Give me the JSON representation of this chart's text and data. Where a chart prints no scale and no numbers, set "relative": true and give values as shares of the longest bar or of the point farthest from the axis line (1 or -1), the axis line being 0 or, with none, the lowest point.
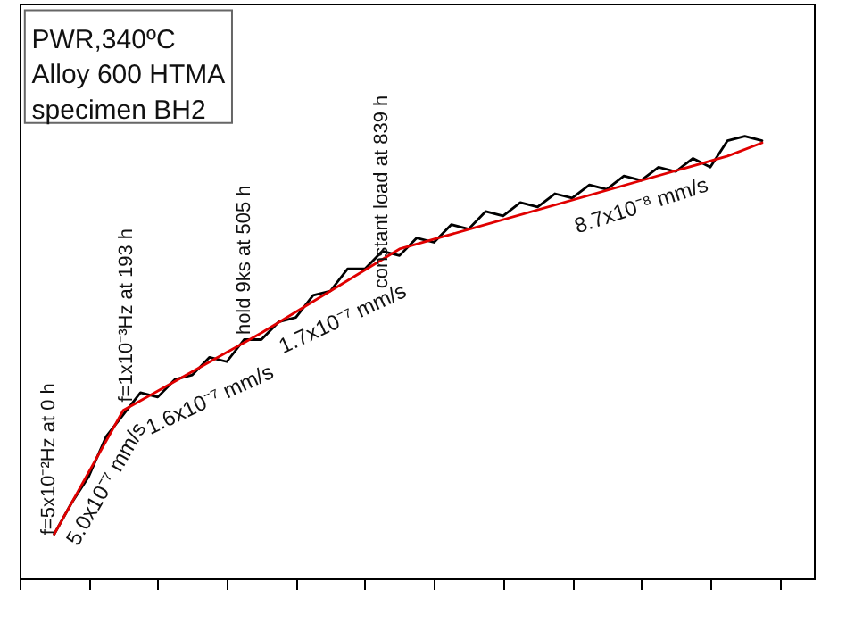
{
  "chart_data": {
    "type": "line",
    "relative": true,
    "tick_labels": false,
    "marker": "none",
    "line_style": "solid",
    "categories": [
      null,
      null,
      null,
      null,
      null,
      null,
      null,
      null,
      null,
      null,
      null,
      null,
      null,
      null,
      null,
      null,
      null,
      null,
      null,
      null,
      null,
      null,
      null,
      null,
      null,
      null,
      null,
      null,
      null,
      null,
      null,
      null,
      null,
      null,
      null,
      null,
      null,
      null,
      null,
      null,
      null,
      null,
      null,
      null,
      null,
      null,
      null
    ],
    "series": [
      {
        "color": "#000000",
        "values": [
          null,
          null,
          0.1,
          0.17,
          0.23,
          0.32,
          0.37,
          0.42,
          0.41,
          0.45,
          0.46,
          0.5,
          0.49,
          0.54,
          0.54,
          0.58,
          0.59,
          0.64,
          0.65,
          0.7,
          0.7,
          0.74,
          0.73,
          0.77,
          0.76,
          0.8,
          0.79,
          0.83,
          0.82,
          0.85,
          0.84,
          0.87,
          0.86,
          0.89,
          0.88,
          0.91,
          0.9,
          0.93,
          0.92,
          0.95,
          0.93,
          0.99,
          1,
          0.99,
          null,
          null,
          null
        ]
      },
      {
        "color": "#e00000",
        "values": [
          null,
          null,
          0.1,
          null,
          null,
          null,
          0.38,
          null,
          null,
          null,
          null,
          null,
          null,
          null,
          0.555,
          null,
          null,
          null,
          null,
          null,
          null,
          null,
          0.745,
          null,
          null,
          null,
          null,
          null,
          null,
          null,
          null,
          null,
          null,
          null,
          null,
          null,
          null,
          null,
          null,
          null,
          null,
          0.955,
          null,
          0.985,
          null,
          null,
          null
        ]
      }
    ],
    "annotations": [
      "PWR,340ºC",
      "Alloy 600 HTMA",
      "specimen BH2",
      "f=5x10⁻²Hz at 0 h",
      "f=1x10⁻³Hz at 193 h",
      "hold 9ks at 505 h",
      "constant load at 839 h",
      "5.0x10⁻⁷ mm/s",
      "1.6x10⁻⁷ mm/s",
      "1.7x10⁻⁷ mm/s",
      "8.7x10⁻⁸ mm/s"
    ]
  }
}
